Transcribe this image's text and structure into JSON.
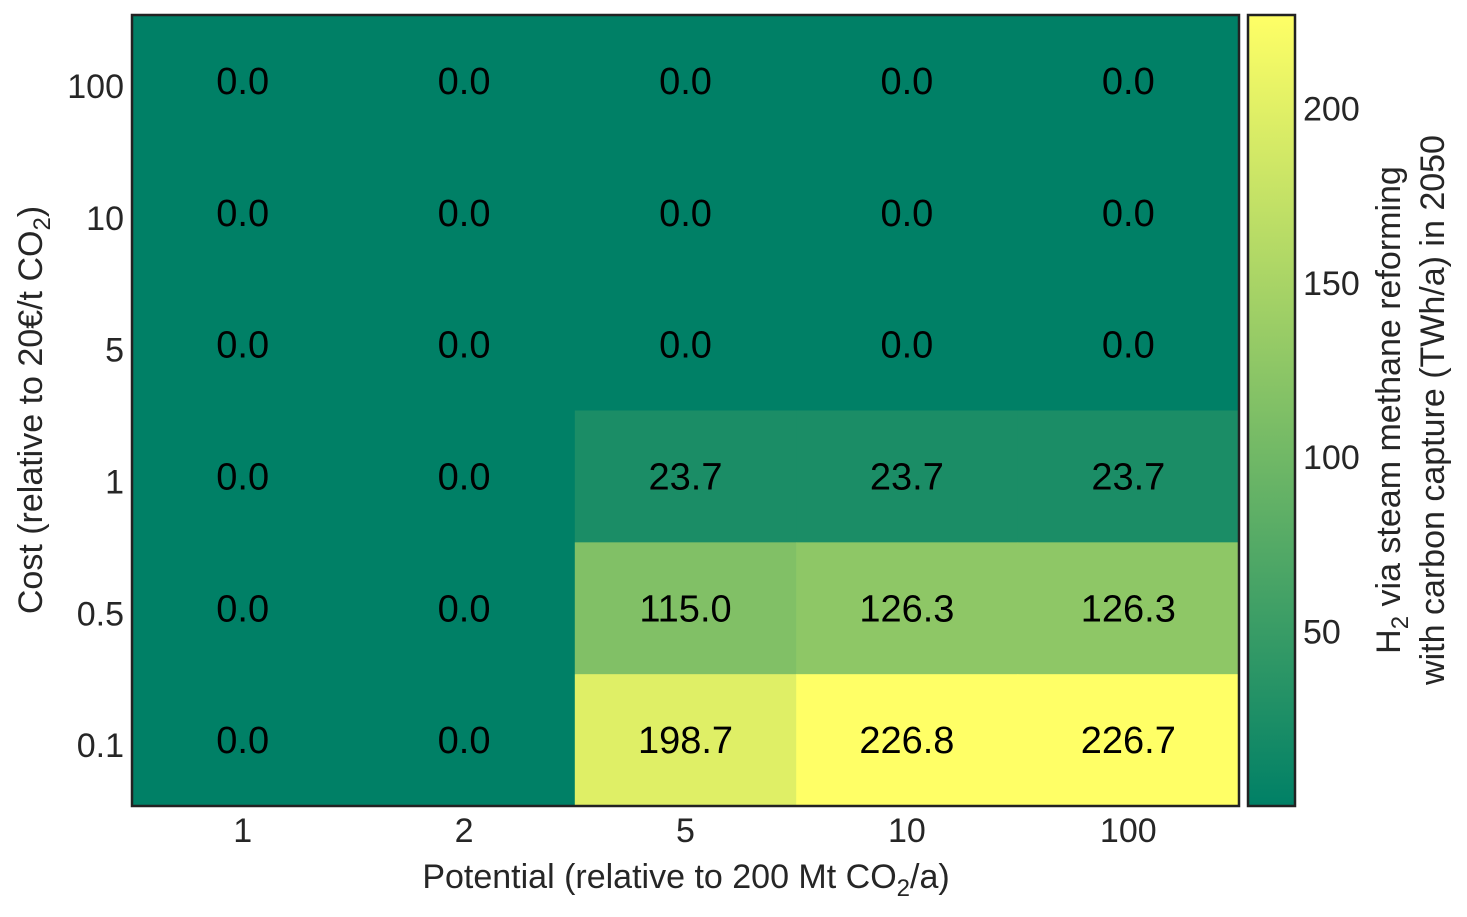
{
  "chart_data": {
    "type": "heatmap",
    "title": "",
    "xlabel": "Potential (relative to 200 Mt CO",
    "xlabel_sub": "2",
    "xlabel_suffix": "/a)",
    "ylabel": "Cost (relative to 20€/t CO",
    "ylabel_sub": "2",
    "ylabel_suffix": ")",
    "x_categories": [
      "1",
      "2",
      "5",
      "10",
      "100"
    ],
    "y_categories": [
      "100",
      "10",
      "5",
      "1",
      "0.5",
      "0.1"
    ],
    "values": [
      [
        0.0,
        0.0,
        0.0,
        0.0,
        0.0
      ],
      [
        0.0,
        0.0,
        0.0,
        0.0,
        0.0
      ],
      [
        0.0,
        0.0,
        0.0,
        0.0,
        0.0
      ],
      [
        0.0,
        0.0,
        23.7,
        23.7,
        23.7
      ],
      [
        0.0,
        0.0,
        115.0,
        126.3,
        126.3
      ],
      [
        0.0,
        0.0,
        198.7,
        226.8,
        226.7
      ]
    ],
    "value_labels": [
      [
        "0.0",
        "0.0",
        "0.0",
        "0.0",
        "0.0"
      ],
      [
        "0.0",
        "0.0",
        "0.0",
        "0.0",
        "0.0"
      ],
      [
        "0.0",
        "0.0",
        "0.0",
        "0.0",
        "0.0"
      ],
      [
        "0.0",
        "0.0",
        "23.7",
        "23.7",
        "23.7"
      ],
      [
        "0.0",
        "0.0",
        "115.0",
        "126.3",
        "126.3"
      ],
      [
        "0.0",
        "0.0",
        "198.7",
        "226.8",
        "226.7"
      ]
    ],
    "colorbar": {
      "label_line1_prefix": "H",
      "label_line1_sub": "2",
      "label_line1_suffix": " via steam methane reforming",
      "label_line2": "with carbon capture (TWh/a) in 2050",
      "ticks": [
        50,
        100,
        150,
        200
      ],
      "range": [
        0,
        226.8
      ],
      "colormap": "summer",
      "color_low": "#008066",
      "color_high": "#ffff66"
    },
    "grid": false
  }
}
